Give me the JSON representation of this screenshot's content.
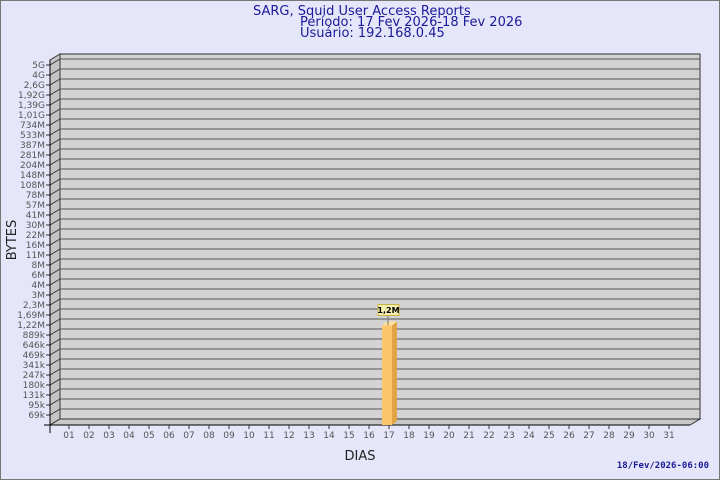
{
  "header": {
    "title": "SARG, Squid User Access Reports",
    "period": "Período: 17 Fev 2026-18 Fev 2026",
    "user": "Usuário: 192.168.0.45"
  },
  "footer": {
    "timestamp": "18/Fev/2026-06:00"
  },
  "colors": {
    "background": "#e6e6fa",
    "plot": "#d3d3d3",
    "bar": "#fcc66a",
    "bar_side": "#e0a444",
    "title": "#1a1a99"
  },
  "chart_data": {
    "type": "bar",
    "title": "SARG, Squid User Access Reports",
    "xlabel": "DIAS",
    "ylabel": "BYTES",
    "grid": true,
    "y_scale": "log-like",
    "y_ticks": [
      "5G",
      "4G",
      "2,6G",
      "1,92G",
      "1,39G",
      "1,01G",
      "734M",
      "533M",
      "387M",
      "281M",
      "204M",
      "148M",
      "108M",
      "78M",
      "57M",
      "41M",
      "30M",
      "22M",
      "16M",
      "11M",
      "8M",
      "6M",
      "4M",
      "3M",
      "2,3M",
      "1,69M",
      "1,22M",
      "889k",
      "646k",
      "469k",
      "341k",
      "247k",
      "180k",
      "131k",
      "95k",
      "69k"
    ],
    "categories": [
      "01",
      "02",
      "03",
      "04",
      "05",
      "06",
      "07",
      "08",
      "09",
      "10",
      "11",
      "12",
      "13",
      "14",
      "15",
      "16",
      "17",
      "18",
      "19",
      "20",
      "21",
      "22",
      "23",
      "24",
      "25",
      "26",
      "27",
      "28",
      "29",
      "30",
      "31"
    ],
    "bars": [
      {
        "category": "17",
        "value": 1200000,
        "label": "1,2M"
      }
    ]
  }
}
